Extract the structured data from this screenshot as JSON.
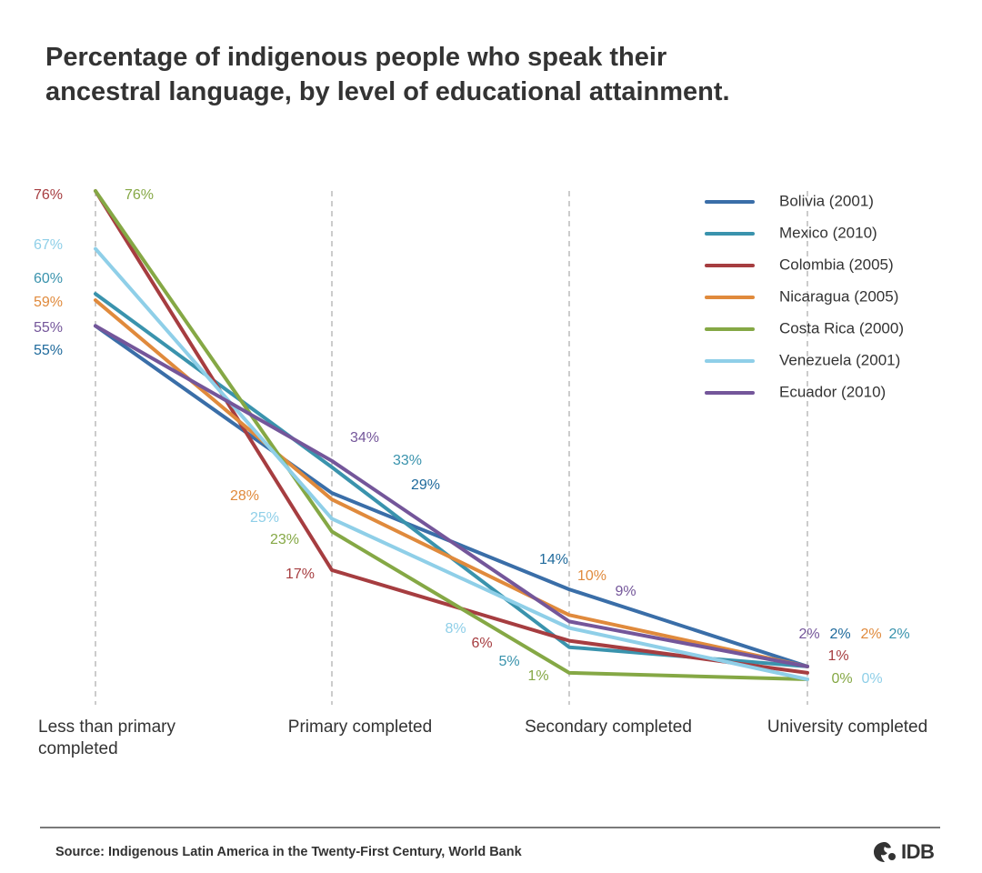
{
  "chart_data": {
    "type": "line",
    "title": "Percentage of indigenous people who speak their\nancestral language, by level of educational attainment.",
    "categories": [
      "Less than primary completed",
      "Primary completed",
      "Secondary completed",
      "University completed"
    ],
    "category_lines": [
      [
        "Less than primary",
        "completed"
      ],
      [
        "Primary completed"
      ],
      [
        "Secondary completed"
      ],
      [
        "University completed"
      ]
    ],
    "unit": "%",
    "ylim": [
      0,
      76
    ],
    "grid": false,
    "legend_position": "top-right",
    "series": [
      {
        "name": "Bolivia (2001)",
        "color": "#3a6ea8",
        "values": [
          55,
          29,
          14,
          2
        ],
        "label_color": "#1f6a9c"
      },
      {
        "name": "Mexico (2010)",
        "color": "#3a93ad",
        "values": [
          60,
          33,
          5,
          2
        ],
        "label_color": "#3a93ad"
      },
      {
        "name": "Colombia (2005)",
        "color": "#a63d40",
        "values": [
          76,
          17,
          6,
          1
        ],
        "label_color": "#a63d40"
      },
      {
        "name": "Nicaragua (2005)",
        "color": "#e08a3c",
        "values": [
          59,
          28,
          10,
          2
        ],
        "label_color": "#e08a3c"
      },
      {
        "name": "Costa Rica (2000)",
        "color": "#85a845",
        "values": [
          76,
          23,
          1,
          0
        ],
        "label_color": "#85a845"
      },
      {
        "name": "Venezuela (2001)",
        "color": "#8fcfe8",
        "values": [
          67,
          25,
          8,
          0
        ],
        "label_color": "#8fcfe8"
      },
      {
        "name": "Ecuador (2010)",
        "color": "#74569a",
        "values": [
          55,
          34,
          9,
          2
        ],
        "label_color": "#74569a"
      }
    ]
  },
  "source": "Source: Indigenous Latin America in the Twenty-First Century, World Bank",
  "logo": {
    "text": "IDB",
    "icon": "idb-logo-icon"
  }
}
